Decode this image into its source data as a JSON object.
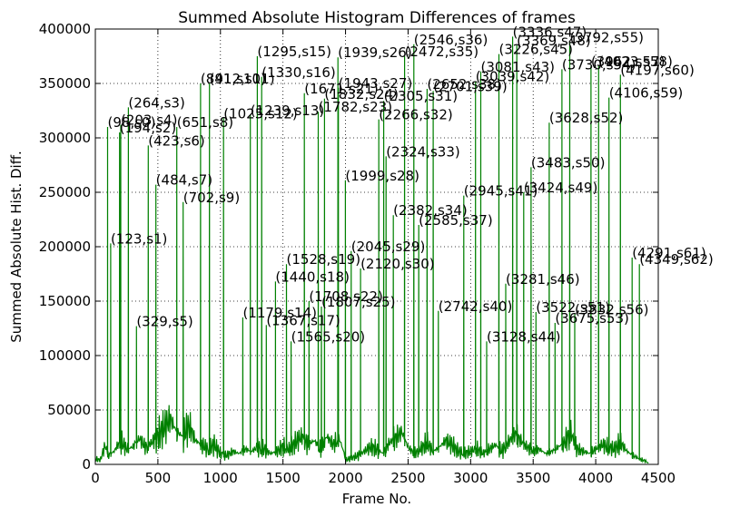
{
  "chart_data": {
    "type": "line",
    "title": "Summed Absolute Histogram Differences of frames",
    "xlabel": "Frame No.",
    "ylabel": "Summed Absolute Hist. Diff.",
    "xlim": [
      0,
      4500
    ],
    "ylim": [
      0,
      400000
    ],
    "xticks": [
      0,
      500,
      1000,
      1500,
      2000,
      2500,
      3000,
      3500,
      4000,
      4500
    ],
    "yticks": [
      0,
      50000,
      100000,
      150000,
      200000,
      250000,
      300000,
      350000,
      400000
    ],
    "grid": true,
    "line_color": "#008000",
    "baseline": [
      [
        0,
        5000
      ],
      [
        40,
        4000
      ],
      [
        80,
        18000
      ],
      [
        100,
        8000
      ],
      [
        150,
        12000
      ],
      [
        200,
        22000
      ],
      [
        250,
        14000
      ],
      [
        300,
        16000
      ],
      [
        350,
        24000
      ],
      [
        400,
        16000
      ],
      [
        450,
        20000
      ],
      [
        500,
        26000
      ],
      [
        550,
        34000
      ],
      [
        600,
        42000
      ],
      [
        650,
        30000
      ],
      [
        700,
        26000
      ],
      [
        750,
        36000
      ],
      [
        800,
        22000
      ],
      [
        850,
        18000
      ],
      [
        900,
        14000
      ],
      [
        950,
        18000
      ],
      [
        1000,
        10000
      ],
      [
        1050,
        8000
      ],
      [
        1100,
        12000
      ],
      [
        1150,
        10000
      ],
      [
        1200,
        14000
      ],
      [
        1250,
        12000
      ],
      [
        1300,
        16000
      ],
      [
        1350,
        14000
      ],
      [
        1400,
        10000
      ],
      [
        1450,
        12000
      ],
      [
        1500,
        16000
      ],
      [
        1550,
        14000
      ],
      [
        1600,
        20000
      ],
      [
        1650,
        26000
      ],
      [
        1700,
        18000
      ],
      [
        1750,
        22000
      ],
      [
        1800,
        14000
      ],
      [
        1850,
        26000
      ],
      [
        1900,
        18000
      ],
      [
        1950,
        24000
      ],
      [
        1990,
        10000
      ],
      [
        2000,
        4000
      ],
      [
        2050,
        6000
      ],
      [
        2100,
        8000
      ],
      [
        2150,
        12000
      ],
      [
        2200,
        16000
      ],
      [
        2250,
        14000
      ],
      [
        2300,
        10000
      ],
      [
        2350,
        20000
      ],
      [
        2400,
        24000
      ],
      [
        2450,
        30000
      ],
      [
        2500,
        16000
      ],
      [
        2550,
        10000
      ],
      [
        2600,
        14000
      ],
      [
        2650,
        20000
      ],
      [
        2700,
        12000
      ],
      [
        2750,
        16000
      ],
      [
        2800,
        22000
      ],
      [
        2850,
        18000
      ],
      [
        2900,
        12000
      ],
      [
        2950,
        10000
      ],
      [
        3000,
        12000
      ],
      [
        3050,
        14000
      ],
      [
        3100,
        10000
      ],
      [
        3150,
        14000
      ],
      [
        3200,
        18000
      ],
      [
        3250,
        12000
      ],
      [
        3300,
        20000
      ],
      [
        3350,
        28000
      ],
      [
        3400,
        22000
      ],
      [
        3450,
        16000
      ],
      [
        3500,
        12000
      ],
      [
        3550,
        14000
      ],
      [
        3600,
        10000
      ],
      [
        3650,
        12000
      ],
      [
        3700,
        16000
      ],
      [
        3750,
        20000
      ],
      [
        3800,
        30000
      ],
      [
        3850,
        14000
      ],
      [
        3900,
        12000
      ],
      [
        3950,
        10000
      ],
      [
        4000,
        14000
      ],
      [
        4050,
        18000
      ],
      [
        4100,
        16000
      ],
      [
        4150,
        14000
      ],
      [
        4200,
        20000
      ],
      [
        4250,
        12000
      ],
      [
        4300,
        8000
      ],
      [
        4350,
        5000
      ],
      [
        4400,
        3000
      ],
      [
        4420,
        1000
      ]
    ],
    "peaks": [
      {
        "label": "(98,s0)",
        "x": 98,
        "y": 310000
      },
      {
        "label": "(123,s1)",
        "x": 123,
        "y": 203000
      },
      {
        "label": "(194,s2)",
        "x": 194,
        "y": 305000
      },
      {
        "label": "(203,s4)",
        "x": 203,
        "y": 312000
      },
      {
        "label": "(264,s3)",
        "x": 264,
        "y": 328000
      },
      {
        "label": "(329,s5)",
        "x": 329,
        "y": 127000
      },
      {
        "label": "(423,s6)",
        "x": 423,
        "y": 293000
      },
      {
        "label": "(484,s7)",
        "x": 484,
        "y": 257000
      },
      {
        "label": "(651,s8)",
        "x": 651,
        "y": 310000
      },
      {
        "label": "(702,s9)",
        "x": 702,
        "y": 241000
      },
      {
        "label": "(841,s10)",
        "x": 841,
        "y": 350000
      },
      {
        "label": "(912,s11)",
        "x": 912,
        "y": 350000
      },
      {
        "label": "(1025,s12)",
        "x": 1025,
        "y": 318000
      },
      {
        "label": "(1179,s14)",
        "x": 1179,
        "y": 135000
      },
      {
        "label": "(1239,s13)",
        "x": 1239,
        "y": 321000
      },
      {
        "label": "(1295,s15)",
        "x": 1295,
        "y": 375000
      },
      {
        "label": "(1330,s16)",
        "x": 1330,
        "y": 356000
      },
      {
        "label": "(1367,s17)",
        "x": 1367,
        "y": 128000
      },
      {
        "label": "(1440,s18)",
        "x": 1440,
        "y": 168000
      },
      {
        "label": "(1528,s19)",
        "x": 1528,
        "y": 184000
      },
      {
        "label": "(1565,s20)",
        "x": 1565,
        "y": 113000
      },
      {
        "label": "(1671,s21)",
        "x": 1671,
        "y": 341000
      },
      {
        "label": "(1708,s22)",
        "x": 1708,
        "y": 150000
      },
      {
        "label": "(1782,s23)",
        "x": 1782,
        "y": 324000
      },
      {
        "label": "(1807,s25)",
        "x": 1807,
        "y": 145000
      },
      {
        "label": "(1832,s24)",
        "x": 1832,
        "y": 336000
      },
      {
        "label": "(1939,s26)",
        "x": 1939,
        "y": 374000
      },
      {
        "label": "(1943,s27)",
        "x": 1943,
        "y": 346000
      },
      {
        "label": "(1999,s28)",
        "x": 1999,
        "y": 261000
      },
      {
        "label": "(2045,s29)",
        "x": 2045,
        "y": 196000
      },
      {
        "label": "(2120,s30)",
        "x": 2120,
        "y": 180000
      },
      {
        "label": "(2266,s32)",
        "x": 2266,
        "y": 317000
      },
      {
        "label": "(2305,s31)",
        "x": 2305,
        "y": 334000
      },
      {
        "label": "(2324,s33)",
        "x": 2324,
        "y": 283000
      },
      {
        "label": "(2382,s34)",
        "x": 2382,
        "y": 229000
      },
      {
        "label": "(2472,s35)",
        "x": 2472,
        "y": 375000
      },
      {
        "label": "(2546,s36)",
        "x": 2546,
        "y": 386000
      },
      {
        "label": "(2585,s37)",
        "x": 2585,
        "y": 220000
      },
      {
        "label": "(2652,s38)",
        "x": 2652,
        "y": 345000
      },
      {
        "label": "(2701,s39)",
        "x": 2701,
        "y": 343000
      },
      {
        "label": "(2742,s40)",
        "x": 2742,
        "y": 141000
      },
      {
        "label": "(2945,s41)",
        "x": 2945,
        "y": 247000
      },
      {
        "label": "(3039,s42)",
        "x": 3039,
        "y": 352000
      },
      {
        "label": "(3081,s43)",
        "x": 3081,
        "y": 361000
      },
      {
        "label": "(3128,s44)",
        "x": 3128,
        "y": 113000
      },
      {
        "label": "(3226,s45)",
        "x": 3226,
        "y": 377000
      },
      {
        "label": "(3281,s46)",
        "x": 3281,
        "y": 166000
      },
      {
        "label": "(3336,s47)",
        "x": 3336,
        "y": 393000
      },
      {
        "label": "(3369,s48)",
        "x": 3369,
        "y": 385000
      },
      {
        "label": "(3424,s49)",
        "x": 3424,
        "y": 250000
      },
      {
        "label": "(3483,s50)",
        "x": 3483,
        "y": 273000
      },
      {
        "label": "(3522,s51)",
        "x": 3522,
        "y": 140000
      },
      {
        "label": "(3628,s52)",
        "x": 3628,
        "y": 314000
      },
      {
        "label": "(3675,s53)",
        "x": 3675,
        "y": 130000
      },
      {
        "label": "(3730,s54)",
        "x": 3730,
        "y": 363000
      },
      {
        "label": "(3792,s55)",
        "x": 3792,
        "y": 388000
      },
      {
        "label": "(3832,s56)",
        "x": 3832,
        "y": 138000
      },
      {
        "label": "(3962,s57)",
        "x": 3962,
        "y": 366000
      },
      {
        "label": "(4023,s58)",
        "x": 4023,
        "y": 366000
      },
      {
        "label": "(4106,s59)",
        "x": 4106,
        "y": 337000
      },
      {
        "label": "(4197,s60)",
        "x": 4197,
        "y": 358000
      },
      {
        "label": "(4291,s61)",
        "x": 4291,
        "y": 190000
      },
      {
        "label": "(4349,s62)",
        "x": 4349,
        "y": 184000
      }
    ]
  }
}
